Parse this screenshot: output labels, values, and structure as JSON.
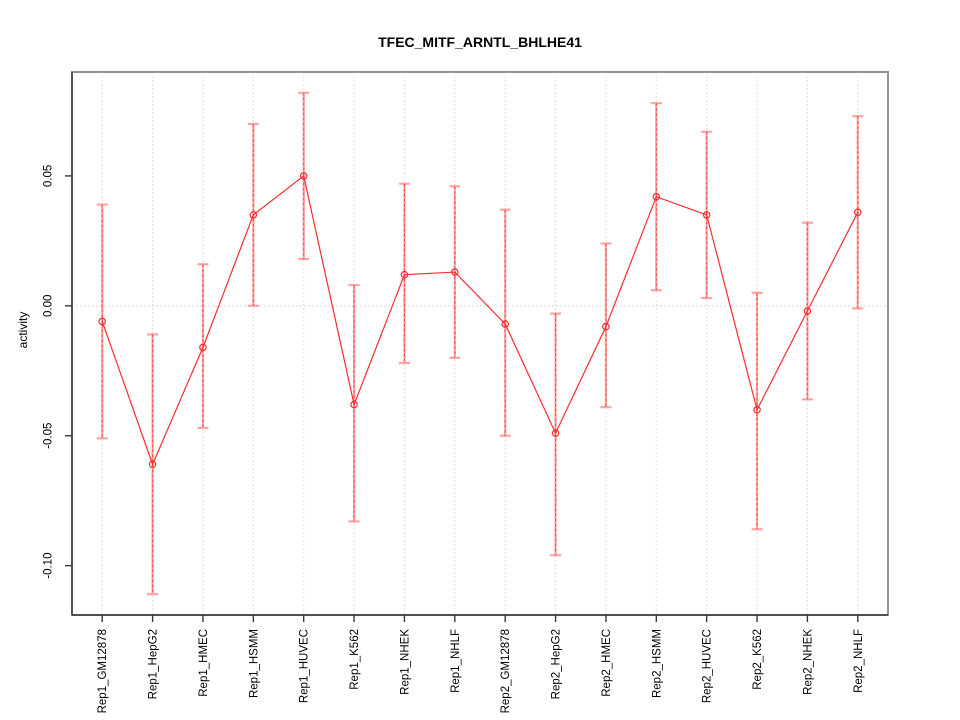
{
  "chart_data": {
    "type": "line",
    "title": "TFEC_MITF_ARNTL_BHLHE41",
    "ylabel": "activity",
    "xlabel": "",
    "legend_position": "none",
    "categories": [
      "Rep1_GM12878",
      "Rep1_HepG2",
      "Rep1_HMEC",
      "Rep1_HSMM",
      "Rep1_HUVEC",
      "Rep1_K562",
      "Rep1_NHEK",
      "Rep1_NHLF",
      "Rep2_GM12878",
      "Rep2_HepG2",
      "Rep2_HMEC",
      "Rep2_HSMM",
      "Rep2_HUVEC",
      "Rep2_K562",
      "Rep2_NHEK",
      "Rep2_NHLF"
    ],
    "series": [
      {
        "name": "activity",
        "marker": "open-circle",
        "values": [
          -0.006,
          -0.061,
          -0.016,
          0.035,
          0.05,
          -0.038,
          0.012,
          0.013,
          -0.007,
          -0.049,
          -0.008,
          0.042,
          0.035,
          -0.04,
          -0.002,
          0.036
        ],
        "error_high": [
          0.039,
          -0.011,
          0.016,
          0.07,
          0.082,
          0.008,
          0.047,
          0.046,
          0.037,
          -0.003,
          0.024,
          0.078,
          0.067,
          0.005,
          0.032,
          0.073
        ],
        "error_low": [
          -0.051,
          -0.111,
          -0.047,
          0.0,
          0.018,
          -0.083,
          -0.022,
          -0.02,
          -0.05,
          -0.096,
          -0.039,
          0.006,
          0.003,
          -0.086,
          -0.036,
          -0.001
        ]
      }
    ],
    "yticks": [
      0.05,
      0,
      -0.05,
      -0.1
    ],
    "ytick_labels": [
      "0.05",
      "0.00",
      "-0.05",
      "-0.10"
    ],
    "ylim": [
      -0.119,
      0.09
    ],
    "grid": {
      "vertical_gridlines": true,
      "horizontal_zero_line": true,
      "gridline_style": "dotted"
    },
    "colors": {
      "line": "#fb2c2c",
      "point": "#fb2c2c",
      "error_bar": "#ffa2a2",
      "error_dash": "#fb4a4a",
      "grid": "#d9d9d9",
      "zero_line": "#cfcfcf",
      "box": "#949494",
      "axis": "#383838",
      "text": "#000000"
    }
  }
}
